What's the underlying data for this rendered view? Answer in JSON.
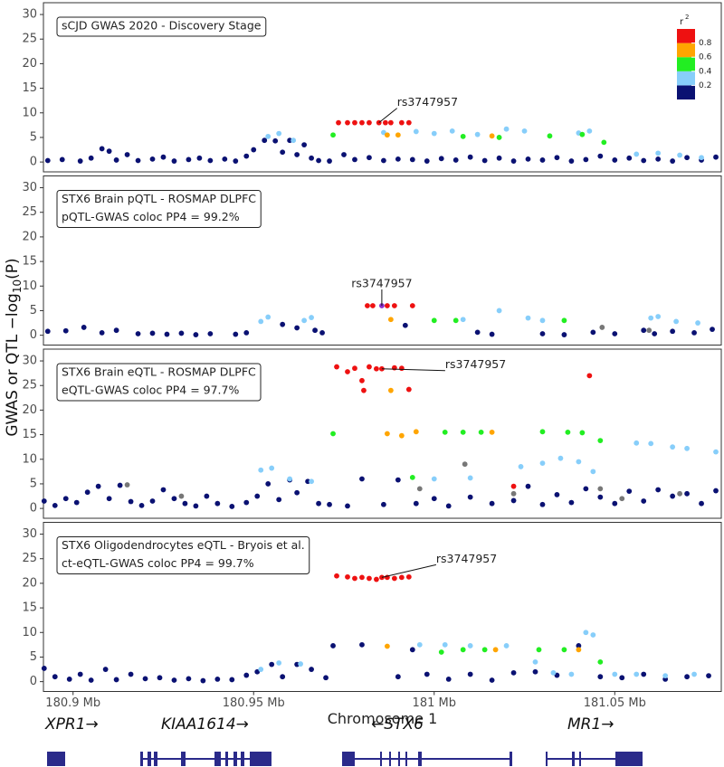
{
  "ylabel": {
    "prefix": "GWAS or QTL  −log",
    "sub": "10",
    "suffix": "(P)"
  },
  "genes": [
    "XPR1→",
    "KIAA1614→",
    "←STX6",
    "MR1→"
  ],
  "chart_data": [
    {
      "type": "scatter",
      "title_lines": [
        "sCJD GWAS 2020 - Discovery Stage"
      ],
      "xlim": [
        180.8918,
        181.0795
      ],
      "ylim": [
        -2,
        32.4
      ],
      "yticks": [
        0,
        5,
        10,
        15,
        20,
        25,
        30
      ],
      "legend": {
        "title": "r",
        "title_sup": "2",
        "lim": [
          0,
          1
        ],
        "ticks": [
          0.2,
          0.4,
          0.6,
          0.8
        ],
        "colors": [
          "#0a1172",
          "#87cefa",
          "#22ee22",
          "#ffa500",
          "#ee1111"
        ]
      },
      "annotation": {
        "text": "rs3747957",
        "x": 180.9847,
        "y": 8
      },
      "series": [
        {
          "color": "#0a1172",
          "x": [
            180.893,
            180.897,
            180.902,
            180.905,
            180.908,
            180.91,
            180.912,
            180.915,
            180.918,
            180.922,
            180.925,
            180.928,
            180.932,
            180.935,
            180.938,
            180.942,
            180.945,
            180.948,
            180.95,
            180.953,
            180.956,
            180.958,
            180.96,
            180.962,
            180.964,
            180.966,
            180.968,
            180.971,
            180.975,
            180.978,
            180.982,
            180.986,
            180.99,
            180.994,
            180.998,
            181.002,
            181.006,
            181.01,
            181.014,
            181.018,
            181.022,
            181.026,
            181.03,
            181.034,
            181.038,
            181.042,
            181.046,
            181.05,
            181.054,
            181.058,
            181.062,
            181.066,
            181.07,
            181.074,
            181.078
          ],
          "values": [
            0.3,
            0.5,
            0.2,
            0.8,
            2.7,
            2.2,
            0.4,
            1.5,
            0.3,
            0.6,
            1.0,
            0.2,
            0.5,
            0.8,
            0.3,
            0.6,
            0.2,
            1.2,
            2.5,
            4.4,
            4.3,
            2.0,
            4.4,
            1.5,
            3.5,
            0.8,
            0.3,
            0.2,
            1.5,
            0.5,
            0.9,
            0.3,
            0.6,
            0.5,
            0.2,
            0.7,
            0.4,
            1.0,
            0.3,
            0.8,
            0.2,
            0.6,
            0.4,
            0.9,
            0.2,
            0.5,
            1.2,
            0.4,
            0.8,
            0.3,
            0.6,
            0.2,
            0.9,
            0.4,
            1.0
          ]
        },
        {
          "color": "#87cefa",
          "x": [
            180.954,
            180.957,
            180.961,
            180.986,
            180.995,
            181.0,
            181.005,
            181.012,
            181.02,
            181.025,
            181.04,
            181.043,
            181.056,
            181.062,
            181.068,
            181.074
          ],
          "values": [
            5.2,
            5.8,
            4.4,
            6.0,
            6.2,
            5.8,
            6.3,
            5.6,
            6.7,
            6.3,
            5.9,
            6.3,
            1.6,
            1.8,
            1.4,
            0.9
          ]
        },
        {
          "color": "#22ee22",
          "x": [
            180.972,
            181.008,
            181.018,
            181.032,
            181.041,
            181.047
          ],
          "values": [
            5.5,
            5.2,
            5.0,
            5.3,
            5.6,
            4.0
          ]
        },
        {
          "color": "#ffa500",
          "x": [
            180.987,
            180.99,
            181.016
          ],
          "values": [
            5.5,
            5.5,
            5.3
          ]
        },
        {
          "color": "#ee1111",
          "x": [
            180.9735,
            180.976,
            180.978,
            180.98,
            180.982,
            180.9847,
            180.9865,
            180.988,
            180.991,
            180.993
          ],
          "values": [
            8.0,
            8.0,
            8.0,
            8.0,
            8.0,
            8.0,
            8.0,
            8.0,
            8.0,
            8.0
          ]
        }
      ]
    },
    {
      "type": "scatter",
      "title_lines": [
        "STX6 Brain pQTL - ROSMAP DLPFC",
        "pQTL-GWAS coloc PP4 = 99.2%"
      ],
      "xlim": [
        180.8918,
        181.0795
      ],
      "ylim": [
        -2,
        32.4
      ],
      "yticks": [
        0,
        5,
        10,
        15,
        20,
        25,
        30
      ],
      "annotation": {
        "text": "rs3747957",
        "x": 180.9855,
        "y": 6
      },
      "series": [
        {
          "color": "#0a1172",
          "x": [
            180.893,
            180.898,
            180.903,
            180.908,
            180.912,
            180.918,
            180.922,
            180.926,
            180.93,
            180.934,
            180.938,
            180.945,
            180.948,
            180.958,
            180.962,
            180.967,
            180.969,
            180.992,
            181.012,
            181.016,
            181.03,
            181.036,
            181.044,
            181.05,
            181.058,
            181.061,
            181.066,
            181.072,
            181.077
          ],
          "values": [
            0.8,
            0.9,
            1.6,
            0.5,
            1.0,
            0.3,
            0.4,
            0.2,
            0.4,
            0.1,
            0.3,
            0.2,
            0.5,
            2.2,
            1.5,
            1.0,
            0.5,
            2.0,
            0.6,
            0.2,
            0.3,
            0.1,
            0.6,
            0.3,
            1.0,
            0.3,
            0.8,
            0.5,
            1.2
          ]
        },
        {
          "color": "#87cefa",
          "x": [
            180.952,
            180.954,
            180.964,
            180.966,
            181.008,
            181.018,
            181.026,
            181.03,
            181.06,
            181.062,
            181.067,
            181.073
          ],
          "values": [
            2.8,
            3.7,
            3.0,
            3.6,
            3.2,
            5.0,
            3.5,
            3.0,
            3.5,
            3.8,
            2.8,
            2.5
          ]
        },
        {
          "color": "#22ee22",
          "x": [
            181.0,
            181.006,
            181.036
          ],
          "values": [
            3.0,
            3.0,
            3.0
          ]
        },
        {
          "color": "#ffa500",
          "x": [
            180.988
          ],
          "values": [
            3.2
          ]
        },
        {
          "color": "#ee1111",
          "x": [
            180.9815,
            180.983,
            180.987,
            180.989,
            180.994
          ],
          "values": [
            6.0,
            6.0,
            6.0,
            6.0,
            6.0
          ]
        },
        {
          "color": "#777777",
          "x": [
            181.0465,
            181.0595
          ],
          "values": [
            1.6,
            1.0
          ]
        },
        {
          "color": "#8b2fc9",
          "x": [
            180.9855
          ],
          "values": [
            6.0
          ]
        }
      ]
    },
    {
      "type": "scatter",
      "title_lines": [
        "STX6 Brain eQTL - ROSMAP DLPFC",
        "eQTL-GWAS coloc PP4 = 97.7%"
      ],
      "xlim": [
        180.8918,
        181.0795
      ],
      "ylim": [
        -2,
        32.4
      ],
      "yticks": [
        0,
        5,
        10,
        15,
        20,
        25,
        30
      ],
      "annotation": {
        "text": "rs3747957",
        "x": 180.9855,
        "y": 28.4
      },
      "series": [
        {
          "color": "#0a1172",
          "x": [
            180.892,
            180.895,
            180.898,
            180.901,
            180.904,
            180.907,
            180.91,
            180.913,
            180.916,
            180.919,
            180.922,
            180.925,
            180.928,
            180.931,
            180.934,
            180.937,
            180.94,
            180.944,
            180.948,
            180.951,
            180.954,
            180.957,
            180.96,
            180.962,
            180.965,
            180.968,
            180.971,
            180.976,
            180.98,
            180.986,
            180.99,
            180.995,
            181.0,
            181.004,
            181.01,
            181.016,
            181.022,
            181.026,
            181.03,
            181.034,
            181.038,
            181.042,
            181.046,
            181.05,
            181.054,
            181.058,
            181.062,
            181.066,
            181.07,
            181.074,
            181.078
          ],
          "values": [
            1.5,
            0.6,
            2.0,
            1.2,
            3.3,
            4.5,
            2.0,
            4.7,
            1.4,
            0.6,
            1.5,
            3.8,
            2.0,
            1.0,
            0.5,
            2.5,
            1.0,
            0.4,
            1.2,
            2.5,
            5.0,
            1.8,
            5.8,
            3.2,
            5.5,
            1.0,
            0.8,
            0.5,
            6.0,
            0.8,
            5.8,
            1.0,
            2.0,
            0.5,
            2.3,
            1.0,
            1.6,
            4.5,
            0.8,
            2.8,
            1.2,
            4.0,
            2.3,
            1.0,
            3.5,
            1.5,
            3.8,
            2.5,
            3.0,
            1.0,
            3.6
          ]
        },
        {
          "color": "#87cefa",
          "x": [
            180.952,
            180.955,
            180.96,
            180.966,
            181.0,
            181.01,
            181.024,
            181.03,
            181.035,
            181.04,
            181.044,
            181.056,
            181.06,
            181.066,
            181.07,
            181.078
          ],
          "values": [
            7.8,
            8.2,
            6.0,
            5.5,
            6.0,
            6.2,
            8.5,
            9.2,
            10.2,
            9.5,
            7.5,
            13.3,
            13.2,
            12.5,
            12.2,
            11.5
          ]
        },
        {
          "color": "#22ee22",
          "x": [
            180.972,
            180.994,
            181.003,
            181.008,
            181.013,
            181.03,
            181.037,
            181.041,
            181.046
          ],
          "values": [
            15.2,
            6.3,
            15.5,
            15.5,
            15.5,
            15.6,
            15.5,
            15.4,
            13.8
          ]
        },
        {
          "color": "#ffa500",
          "x": [
            180.987,
            180.988,
            180.991,
            180.995,
            181.016
          ],
          "values": [
            15.2,
            24.0,
            14.8,
            15.6,
            15.5
          ]
        },
        {
          "color": "#ee1111",
          "x": [
            180.973,
            180.976,
            180.978,
            180.98,
            180.9805,
            180.982,
            180.984,
            180.9855,
            180.989,
            180.991,
            180.993,
            181.022,
            181.043
          ],
          "values": [
            28.8,
            27.8,
            28.5,
            26.0,
            24.0,
            28.8,
            28.4,
            28.4,
            28.6,
            28.5,
            24.2,
            4.5,
            27.0
          ]
        },
        {
          "color": "#777777",
          "x": [
            180.915,
            180.93,
            180.996,
            181.0085,
            181.022,
            181.046,
            181.052,
            181.068
          ],
          "values": [
            4.8,
            2.5,
            4.0,
            9.0,
            3.0,
            4.0,
            2.0,
            3.0
          ]
        }
      ]
    },
    {
      "type": "scatter",
      "title_lines": [
        "STX6 Oligodendrocytes eQTL - Bryois et al.",
        "ct-eQTL-GWAS coloc PP4 = 99.7%"
      ],
      "xlim": [
        180.8918,
        181.0795
      ],
      "ylim": [
        -2,
        32.4
      ],
      "yticks": [
        0,
        5,
        10,
        15,
        20,
        25,
        30
      ],
      "xticks": [
        {
          "value": 180.9,
          "label": "180.9 Mb"
        },
        {
          "value": 180.95,
          "label": "180.95 Mb"
        },
        {
          "value": 181,
          "label": "181 Mb"
        },
        {
          "value": 181.05,
          "label": "181.05 Mb"
        }
      ],
      "xlabel": "Chromosome 1",
      "annotation": {
        "text": "rs3747957",
        "x": 180.9855,
        "y": 21.2
      },
      "series": [
        {
          "color": "#0a1172",
          "x": [
            180.892,
            180.895,
            180.899,
            180.902,
            180.905,
            180.909,
            180.912,
            180.916,
            180.92,
            180.924,
            180.928,
            180.932,
            180.936,
            180.94,
            180.944,
            180.948,
            180.951,
            180.955,
            180.958,
            180.962,
            180.966,
            180.97,
            180.972,
            180.98,
            180.99,
            180.994,
            180.998,
            181.004,
            181.01,
            181.016,
            181.022,
            181.028,
            181.034,
            181.04,
            181.046,
            181.052,
            181.058,
            181.064,
            181.07,
            181.076
          ],
          "values": [
            2.7,
            1.0,
            0.5,
            1.5,
            0.3,
            2.5,
            0.4,
            1.5,
            0.6,
            0.8,
            0.3,
            0.6,
            0.2,
            0.5,
            0.4,
            1.3,
            2.0,
            3.5,
            1.0,
            3.5,
            2.5,
            0.8,
            7.3,
            7.5,
            1.0,
            6.5,
            1.5,
            0.5,
            1.5,
            0.3,
            1.8,
            2.0,
            1.3,
            7.3,
            1.0,
            0.8,
            1.5,
            0.5,
            1.0,
            1.2
          ]
        },
        {
          "color": "#87cefa",
          "x": [
            180.952,
            180.957,
            180.963,
            180.996,
            181.003,
            181.01,
            181.02,
            181.028,
            181.033,
            181.038,
            181.042,
            181.044,
            181.05,
            181.056,
            181.064,
            181.072
          ],
          "values": [
            2.5,
            3.8,
            3.6,
            7.5,
            7.5,
            7.3,
            7.3,
            4.0,
            1.8,
            1.5,
            10.0,
            9.5,
            1.5,
            1.5,
            1.2,
            1.5
          ]
        },
        {
          "color": "#22ee22",
          "x": [
            181.002,
            181.008,
            181.014,
            181.029,
            181.036,
            181.046
          ],
          "values": [
            6.0,
            6.5,
            6.5,
            6.5,
            6.5,
            4.0
          ]
        },
        {
          "color": "#ffa500",
          "x": [
            180.987,
            181.017,
            181.04
          ],
          "values": [
            7.2,
            6.5,
            6.5
          ]
        },
        {
          "color": "#ee1111",
          "x": [
            180.973,
            180.976,
            180.978,
            180.98,
            180.982,
            180.984,
            180.9855,
            180.987,
            180.989,
            180.991,
            180.993
          ],
          "values": [
            21.5,
            21.3,
            21.0,
            21.2,
            21.0,
            20.8,
            21.2,
            21.2,
            21.0,
            21.2,
            21.3
          ]
        }
      ]
    }
  ]
}
